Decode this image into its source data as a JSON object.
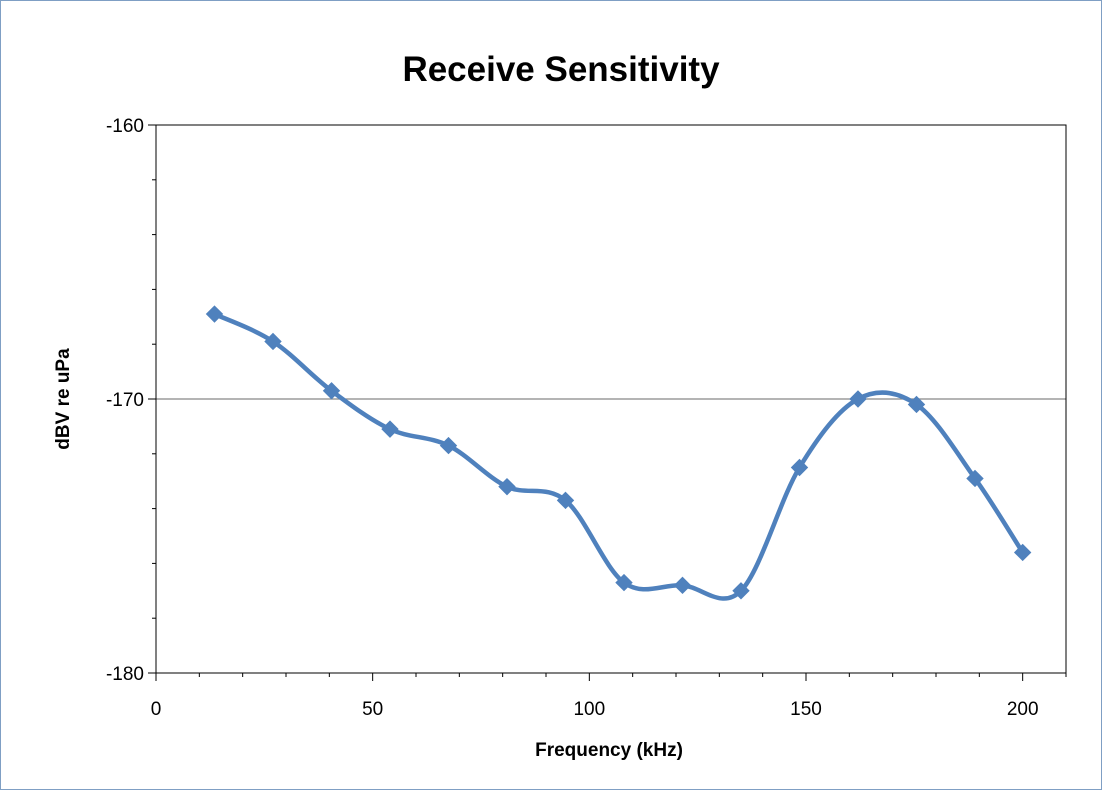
{
  "chart_data": {
    "type": "line",
    "title": "Receive Sensitivity",
    "xlabel": "Frequency (kHz)",
    "ylabel": "dBV re uPa",
    "xlim": [
      0,
      210
    ],
    "ylim": [
      -180,
      -160
    ],
    "x_ticks": [
      0,
      50,
      100,
      150,
      200
    ],
    "x_tick_labels": [
      "0",
      "50",
      "100",
      "150",
      "200"
    ],
    "y_ticks": [
      -160,
      -170,
      -180
    ],
    "y_tick_labels": [
      "-160",
      "-170",
      "-180"
    ],
    "grid": "horizontal gridline at -170",
    "legend": "none",
    "smoothed": true,
    "marker": "diamond",
    "series_color": "#4f81bd",
    "series": [
      {
        "x": [
          13.5,
          27,
          40.5,
          54,
          67.5,
          81,
          94.5,
          108,
          121.5,
          135,
          148.5,
          162,
          175.5,
          189,
          200
        ],
        "values": [
          -166.9,
          -167.9,
          -169.7,
          -171.1,
          -171.7,
          -173.2,
          -173.7,
          -176.7,
          -176.8,
          -177.0,
          -172.5,
          -170.0,
          -170.2,
          -172.9,
          -175.6
        ]
      }
    ]
  }
}
